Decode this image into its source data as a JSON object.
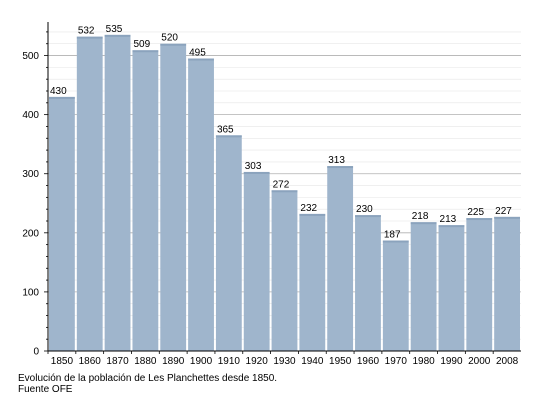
{
  "chart_data": {
    "type": "bar",
    "categories": [
      "1850",
      "1860",
      "1870",
      "1880",
      "1890",
      "1900",
      "1910",
      "1920",
      "1930",
      "1940",
      "1950",
      "1960",
      "1970",
      "1980",
      "1990",
      "2000",
      "2008"
    ],
    "values": [
      430,
      532,
      535,
      509,
      520,
      495,
      365,
      303,
      272,
      232,
      313,
      230,
      187,
      218,
      213,
      225,
      227
    ],
    "ylim": [
      0,
      550
    ],
    "yticks": [
      0,
      100,
      200,
      300,
      400,
      500
    ],
    "grid": true,
    "data_labels": true,
    "bar_color": "#9fb5cc",
    "grid_color": "#c8c8c8"
  },
  "caption": {
    "line1": "Evolución de la población de Les Planchettes desde 1850.",
    "line2": "Fuente OFE"
  }
}
